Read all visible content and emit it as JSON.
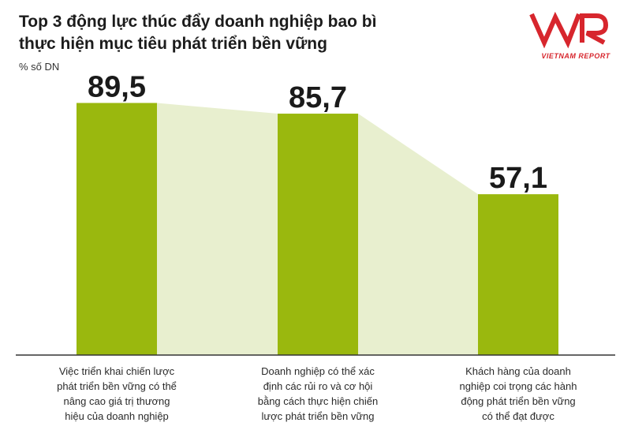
{
  "title_lines": [
    "Top 3 động lực thúc đẩy doanh nghiệp bao bì",
    "thực hiện mục tiêu phát triển bền vững"
  ],
  "unit_label": "% số DN",
  "logo": {
    "mark": "VNR",
    "text": "VIETNAM REPORT",
    "color": "#d7262d"
  },
  "colors": {
    "bar": "#9ab80e",
    "area": "#e8efcf",
    "axis": "#333333"
  },
  "chart_data": {
    "type": "bar",
    "title": "Top 3 động lực thúc đẩy doanh nghiệp bao bì thực hiện mục tiêu phát triển bền vững",
    "ylabel": "% số DN",
    "ylim": [
      0,
      100
    ],
    "grid": false,
    "legend": "none",
    "categories": [
      [
        "Việc triển khai chiến lược",
        "phát triển bền vững có thể",
        "nâng cao giá trị thương",
        "hiệu của doanh nghiệp"
      ],
      [
        "Doanh nghiệp có thể xác",
        "định các rủi ro và cơ hội",
        "bằng cách thực hiện chiến",
        "lược phát triển bền vững"
      ],
      [
        "Khách hàng của doanh",
        "nghiệp coi trọng các hành",
        "động phát triển bền vững",
        "có thể đạt được"
      ]
    ],
    "values": [
      89.5,
      85.7,
      57.1
    ],
    "value_labels": [
      "89,5",
      "85,7",
      "57,1"
    ]
  }
}
